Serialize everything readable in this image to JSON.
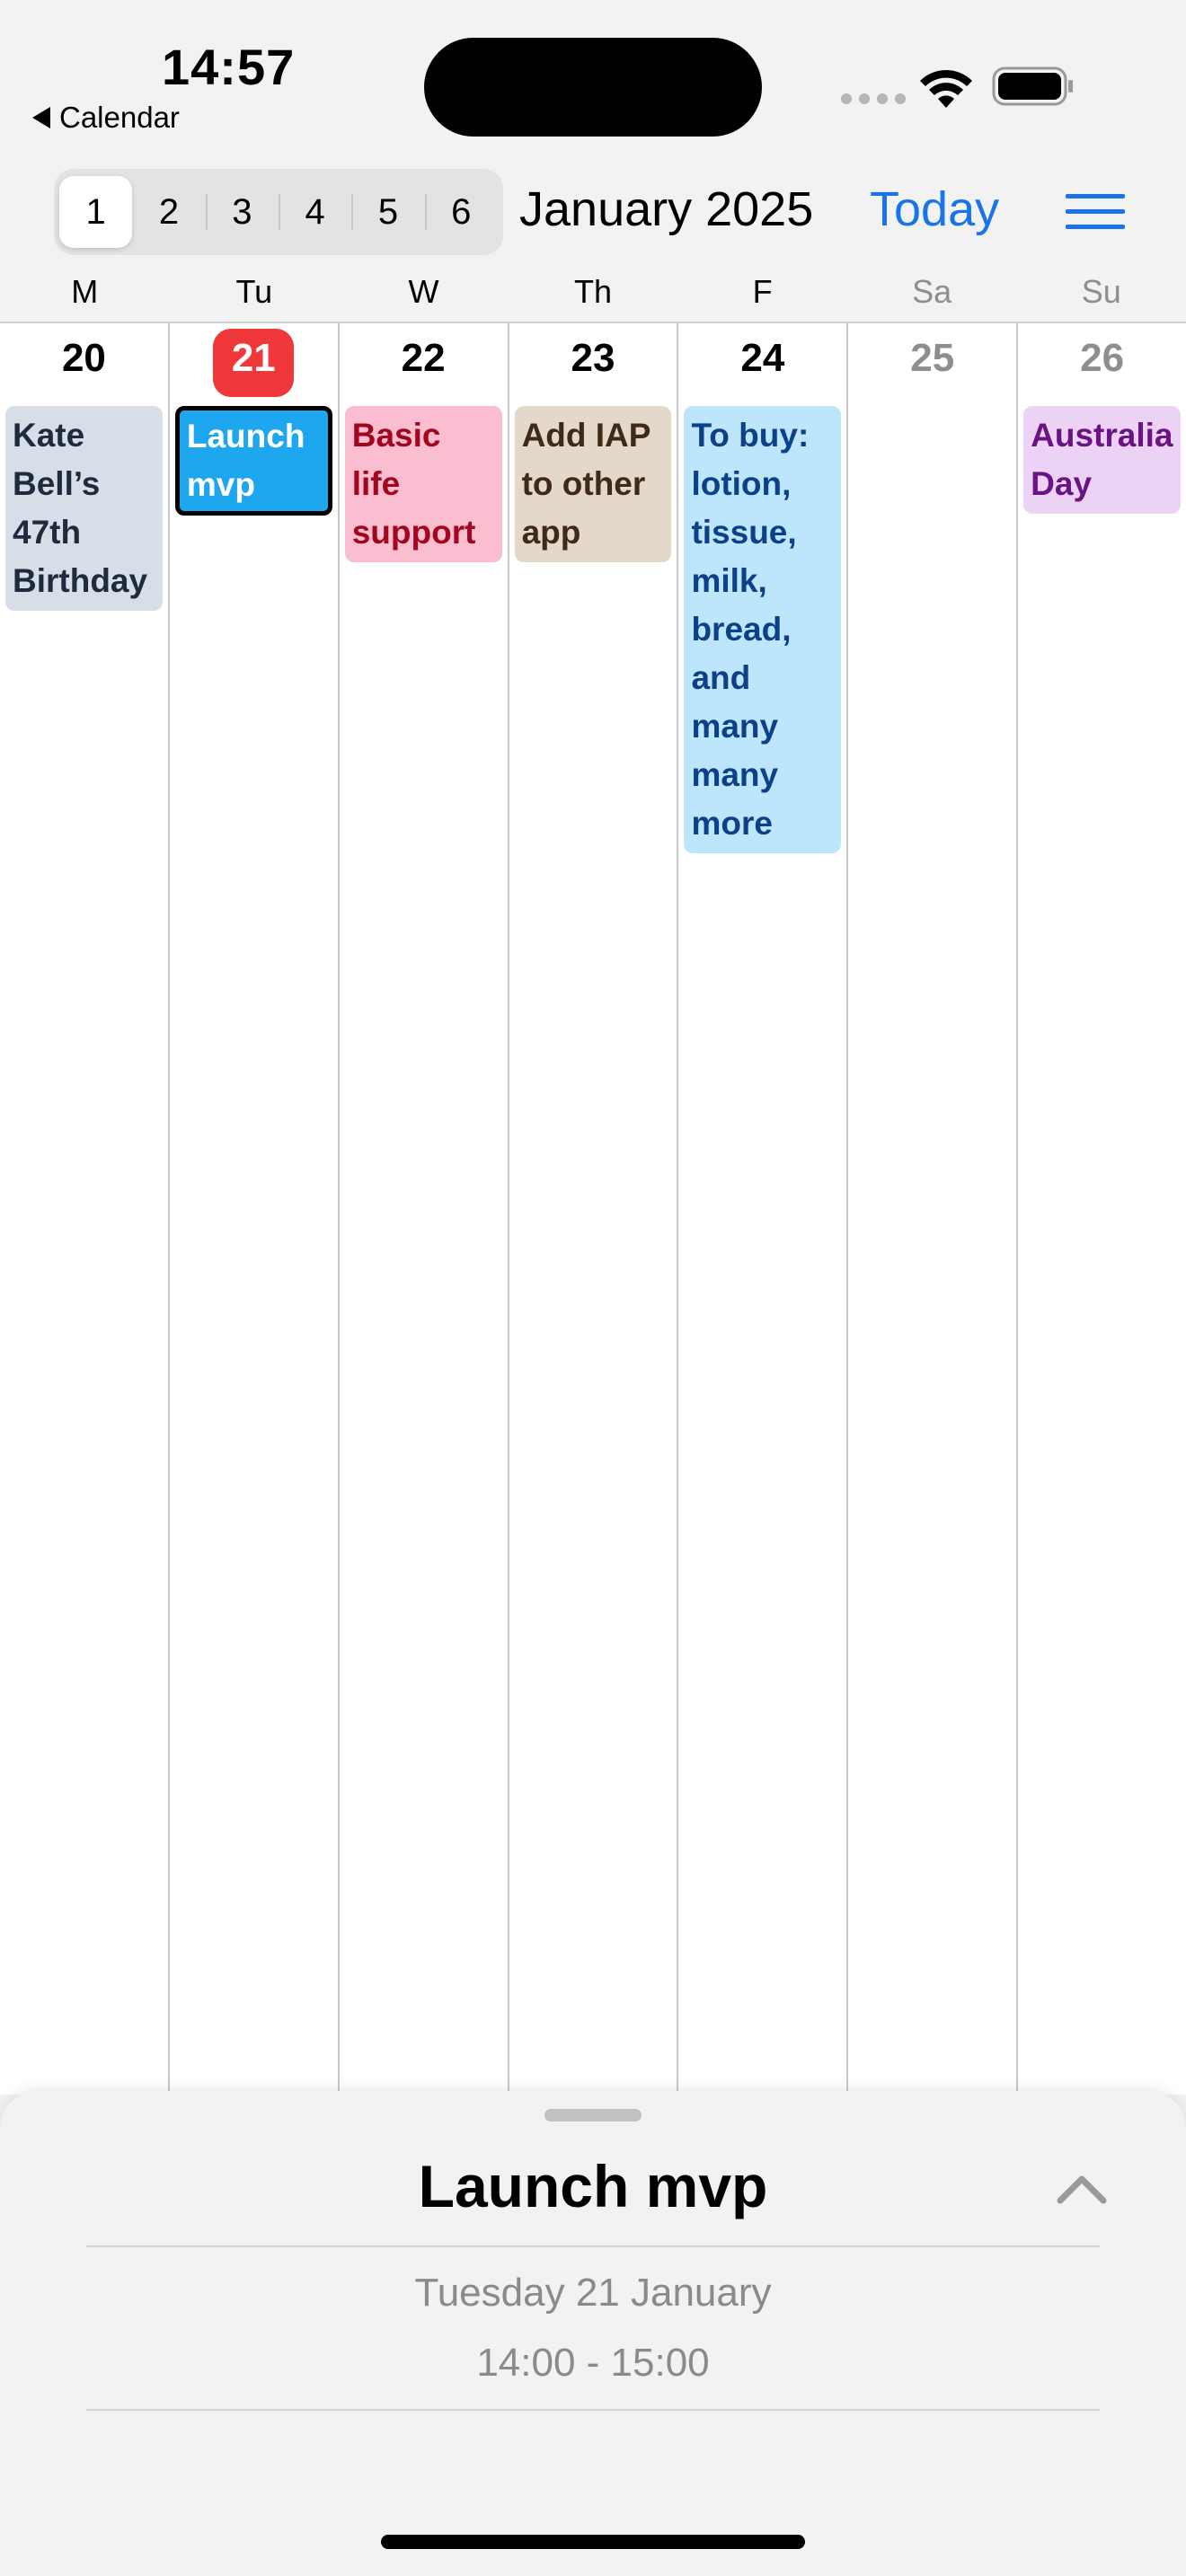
{
  "status_bar": {
    "time": "14:57",
    "back_label": "Calendar"
  },
  "toolbar": {
    "segments": [
      "1",
      "2",
      "3",
      "4",
      "5",
      "6"
    ],
    "selected_segment": "1",
    "month_title": "January 2025",
    "today_label": "Today",
    "accent_color": "#1a73e8"
  },
  "week": {
    "weekdays": [
      "M",
      "Tu",
      "W",
      "Th",
      "F",
      "Sa",
      "Su"
    ],
    "days": [
      {
        "num": "20",
        "events": [
          {
            "title": "Kate Bell’s 47th Birthday",
            "color": "#d7dee7"
          }
        ]
      },
      {
        "num": "21",
        "today": true,
        "events": [
          {
            "title": "Launch mvp",
            "color": "#1ea7ee",
            "selected": true
          }
        ]
      },
      {
        "num": "22",
        "events": [
          {
            "title": "Basic life support",
            "color": "#fbbdd0"
          }
        ]
      },
      {
        "num": "23",
        "events": [
          {
            "title": "Add IAP to other app",
            "color": "#e4d8cb"
          }
        ]
      },
      {
        "num": "24",
        "events": [
          {
            "title": "To buy: lotion, tissue, milk, bread, and many many more",
            "color": "#bde6fd"
          }
        ]
      },
      {
        "num": "25",
        "weekend": true,
        "events": []
      },
      {
        "num": "26",
        "weekend": true,
        "events": [
          {
            "title": "Australia Day",
            "color": "#ecd2f4"
          }
        ]
      }
    ],
    "today_color": "#f0383b"
  },
  "detail_sheet": {
    "title": "Launch mvp",
    "date": "Tuesday 21 January",
    "time": "14:00 - 15:00"
  }
}
